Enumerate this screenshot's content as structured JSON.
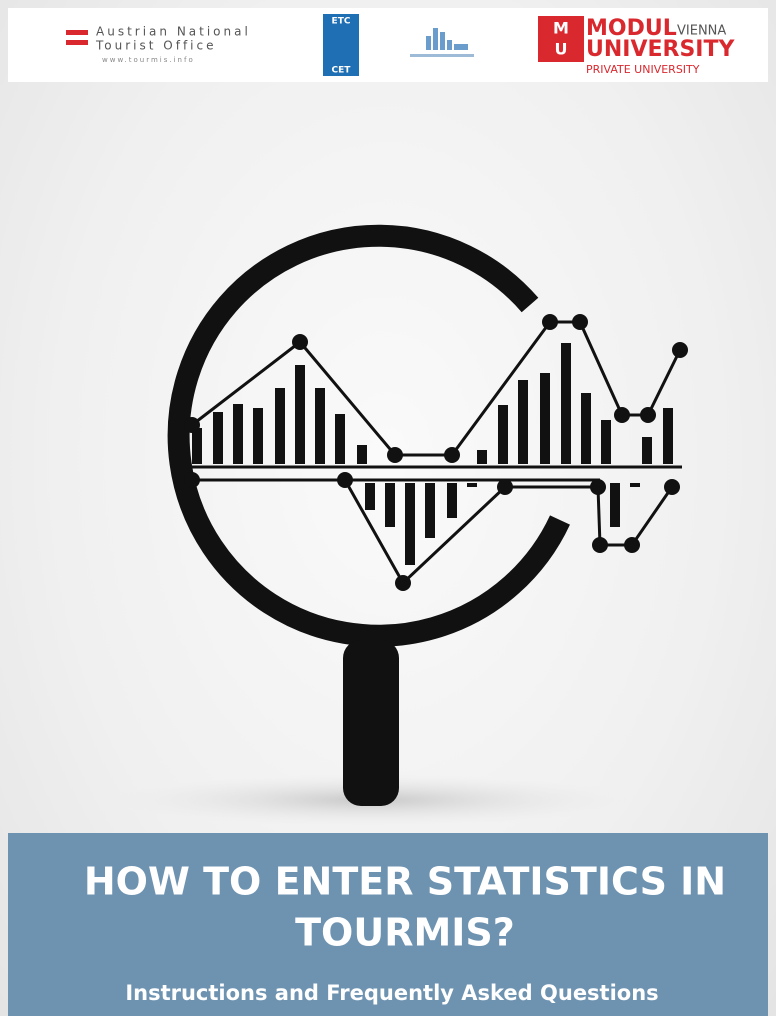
{
  "header": {
    "logos": [
      {
        "lines": [
          "Austrian National",
          "Tourist Office",
          "www.tourmis.info"
        ]
      },
      {
        "lines": [
          "ETC",
          "CET"
        ]
      },
      {
        "lines": [
          "MODUL",
          "VIENNA",
          "UNIVERSITY",
          "PRIVATE UNIVERSITY"
        ]
      }
    ]
  },
  "cover": {
    "title_lines": [
      "HOW TO ENTER STATISTICS IN",
      "TOURMIS?"
    ],
    "subtitle": "Instructions and Frequently Asked Questions"
  }
}
